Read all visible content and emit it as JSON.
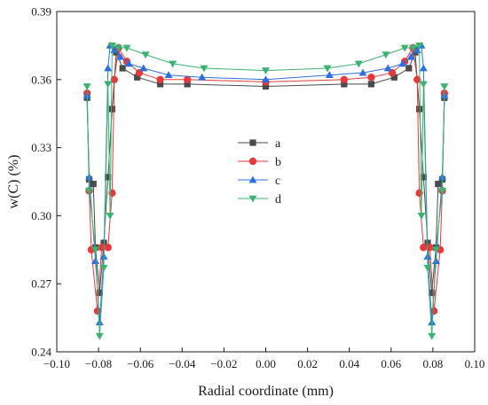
{
  "chart_data": {
    "type": "line",
    "xlabel": "Radial coordinate (mm)",
    "ylabel": "w(C)  (%)",
    "xlim": [
      -0.1,
      0.1
    ],
    "ylim": [
      0.24,
      0.39
    ],
    "xticks": [
      -0.1,
      -0.08,
      -0.06,
      -0.04,
      -0.02,
      0.0,
      0.02,
      0.04,
      0.06,
      0.08,
      0.1
    ],
    "xtick_labels": [
      "−0.10",
      "−0.08",
      "−0.06",
      "−0.04",
      "−0.02",
      "0.00",
      "0.02",
      "0.04",
      "0.06",
      "0.08",
      "0.10"
    ],
    "yticks": [
      0.24,
      0.27,
      0.3,
      0.33,
      0.36,
      0.39
    ],
    "ytick_labels": [
      "0.24",
      "0.27",
      "0.30",
      "0.33",
      "0.36",
      "0.39"
    ],
    "grid": false,
    "legend_position": "center",
    "series": [
      {
        "name": "a",
        "marker": "square",
        "color": "#4a4a4a",
        "x": [
          -0.0855,
          -0.0845,
          -0.0825,
          -0.0815,
          -0.0795,
          -0.0775,
          -0.0755,
          -0.0735,
          -0.0715,
          -0.0685,
          -0.0615,
          -0.0505,
          -0.0375,
          0.0,
          0.0375,
          0.0505,
          0.0615,
          0.0685,
          0.0715,
          0.0735,
          0.0755,
          0.0775,
          0.0795,
          0.0815,
          0.0825,
          0.0845,
          0.0855
        ],
        "y": [
          0.352,
          0.316,
          0.314,
          0.286,
          0.266,
          0.288,
          0.317,
          0.347,
          0.372,
          0.365,
          0.361,
          0.358,
          0.358,
          0.357,
          0.358,
          0.358,
          0.361,
          0.365,
          0.372,
          0.347,
          0.317,
          0.288,
          0.266,
          0.286,
          0.314,
          0.316,
          0.352
        ]
      },
      {
        "name": "b",
        "marker": "circle",
        "color": "#e8393a",
        "x": [
          -0.0855,
          -0.0845,
          -0.0835,
          -0.0805,
          -0.0785,
          -0.0755,
          -0.0735,
          -0.0725,
          -0.0705,
          -0.0665,
          -0.0605,
          -0.0505,
          -0.0375,
          0.0,
          0.0375,
          0.0505,
          0.0605,
          0.0665,
          0.0705,
          0.0725,
          0.0735,
          0.0755,
          0.0785,
          0.0805,
          0.0835,
          0.0845,
          0.0855
        ],
        "y": [
          0.354,
          0.311,
          0.285,
          0.258,
          0.286,
          0.286,
          0.31,
          0.36,
          0.374,
          0.368,
          0.363,
          0.36,
          0.36,
          0.359,
          0.36,
          0.361,
          0.363,
          0.368,
          0.374,
          0.36,
          0.31,
          0.286,
          0.286,
          0.258,
          0.285,
          0.311,
          0.354
        ]
      },
      {
        "name": "c",
        "marker": "triangle-up",
        "color": "#2d6fe0",
        "x": [
          -0.0855,
          -0.0845,
          -0.0815,
          -0.0795,
          -0.0775,
          -0.0755,
          -0.0745,
          -0.0725,
          -0.0695,
          -0.0655,
          -0.0585,
          -0.0465,
          -0.0305,
          0.0,
          0.0305,
          0.0465,
          0.0585,
          0.0655,
          0.0695,
          0.0725,
          0.0745,
          0.0755,
          0.0775,
          0.0795,
          0.0815,
          0.0845,
          0.0855
        ],
        "y": [
          0.353,
          0.317,
          0.28,
          0.253,
          0.282,
          0.365,
          0.375,
          0.373,
          0.37,
          0.367,
          0.365,
          0.362,
          0.361,
          0.36,
          0.362,
          0.363,
          0.365,
          0.367,
          0.37,
          0.373,
          0.375,
          0.365,
          0.282,
          0.253,
          0.28,
          0.317,
          0.353
        ]
      },
      {
        "name": "d",
        "marker": "triangle-down",
        "color": "#3cb371",
        "x": [
          -0.0855,
          -0.0845,
          -0.0815,
          -0.0795,
          -0.0775,
          -0.0755,
          -0.0745,
          -0.0735,
          -0.0705,
          -0.0665,
          -0.0575,
          -0.0445,
          -0.0295,
          0.0,
          0.0295,
          0.0445,
          0.0575,
          0.0665,
          0.0705,
          0.0735,
          0.0745,
          0.0755,
          0.0775,
          0.0795,
          0.0815,
          0.0845,
          0.0855
        ],
        "y": [
          0.357,
          0.311,
          0.285,
          0.247,
          0.277,
          0.358,
          0.3,
          0.375,
          0.374,
          0.374,
          0.371,
          0.367,
          0.365,
          0.364,
          0.365,
          0.367,
          0.371,
          0.374,
          0.374,
          0.375,
          0.3,
          0.358,
          0.277,
          0.247,
          0.285,
          0.311,
          0.357
        ]
      }
    ]
  }
}
